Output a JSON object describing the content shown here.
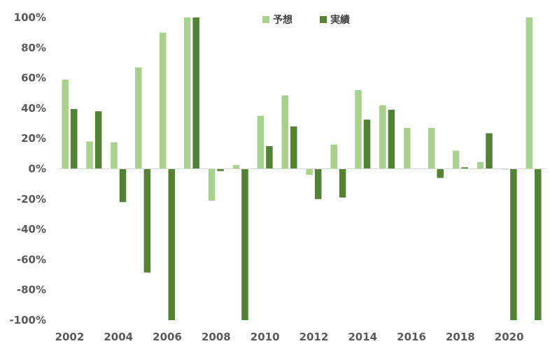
{
  "chart_data": {
    "type": "bar",
    "categories": [
      "2002",
      "2003",
      "2004",
      "2005",
      "2006",
      "2007",
      "2008",
      "2009",
      "2010",
      "2011",
      "2012",
      "2013",
      "2014",
      "2015",
      "2016",
      "2017",
      "2018",
      "2019",
      "2020",
      "2021"
    ],
    "x_tick_labels": [
      "2002",
      "2004",
      "2006",
      "2008",
      "2010",
      "2012",
      "2014",
      "2016",
      "2018",
      "2020"
    ],
    "y_tick_labels": [
      "100%",
      "80%",
      "60%",
      "40%",
      "20%",
      "0%",
      "-20%",
      "-40%",
      "-60%",
      "-80%",
      "-100%"
    ],
    "ylim": [
      -100,
      100
    ],
    "y_unit": "%",
    "grid": false,
    "legend_position": "top-center",
    "series": [
      {
        "name": "予想",
        "color": "#a9d18e",
        "values": [
          59,
          18,
          17.5,
          67,
          90,
          100,
          -21,
          2.5,
          35,
          48.5,
          -4,
          16,
          52,
          42,
          27,
          27,
          12,
          4.5,
          -0.5,
          100
        ]
      },
      {
        "name": "実績",
        "color": "#548235",
        "values": [
          39.5,
          38,
          -22,
          -68.5,
          -100,
          100,
          -1.5,
          -100,
          15,
          28,
          -20,
          -19,
          32.5,
          39,
          0,
          -6,
          1,
          23.5,
          -100,
          -100
        ]
      }
    ]
  }
}
